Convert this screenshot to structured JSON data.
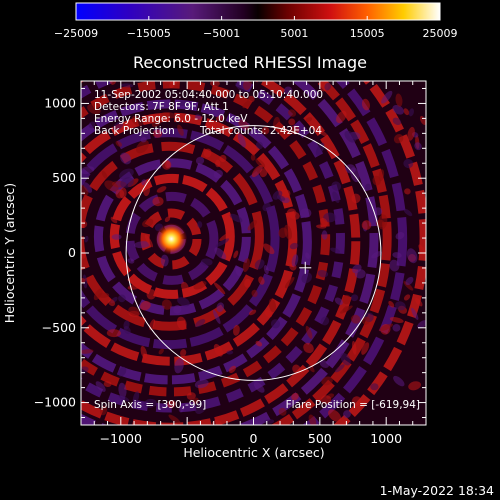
{
  "chart_data": {
    "type": "heatmap",
    "title": "Reconstructed RHESSI Image",
    "xlabel": "Heliocentric X (arcsec)",
    "ylabel": "Heliocentric Y (arcsec)",
    "xlim": [
      -1300,
      1300
    ],
    "ylim": [
      -1150,
      1150
    ],
    "x_ticks": [
      -1000,
      -500,
      0,
      500,
      1000
    ],
    "x_tick_labels": [
      "−1000",
      "−500",
      "0",
      "500",
      "1000"
    ],
    "y_ticks": [
      -1000,
      -500,
      0,
      500,
      1000
    ],
    "y_tick_labels": [
      "−1000",
      "−500",
      "0",
      "500",
      "1000"
    ],
    "colorbar": {
      "min": -25009,
      "max": 25009,
      "ticks": [
        -25009,
        -15005,
        -5001,
        5001,
        15005,
        25009
      ],
      "tick_labels": [
        "−25009",
        "−15005",
        "−5001",
        "5001",
        "15005",
        "25009"
      ],
      "colors": [
        "#0000ff",
        "#3a00c8",
        "#5a1a80",
        "#1a001a",
        "#6e0000",
        "#cc1010",
        "#ff6a00",
        "#ffd000",
        "#ffffff"
      ]
    },
    "annotations": {
      "time_range": "11-Sep-2002 05:04:40.000 to 05:10:40.000",
      "detectors": "Detectors: 7F 8F 9F, Att 1",
      "energy": "Energy Range: 6.0 - 12.0 keV",
      "method": "Back Projection",
      "counts": "Total counts: 2.42E+04",
      "spin_axis": "Spin Axis = [390,-99]",
      "flare_position": "Flare Position = [-619,94]"
    },
    "source": {
      "x": -619,
      "y": 94
    },
    "spin_axis": {
      "x": 390,
      "y": -99
    },
    "solar_disk": {
      "center": [
        0,
        0
      ],
      "radius": 960
    }
  },
  "footer": {
    "timestamp": "1-May-2022 18:34"
  }
}
